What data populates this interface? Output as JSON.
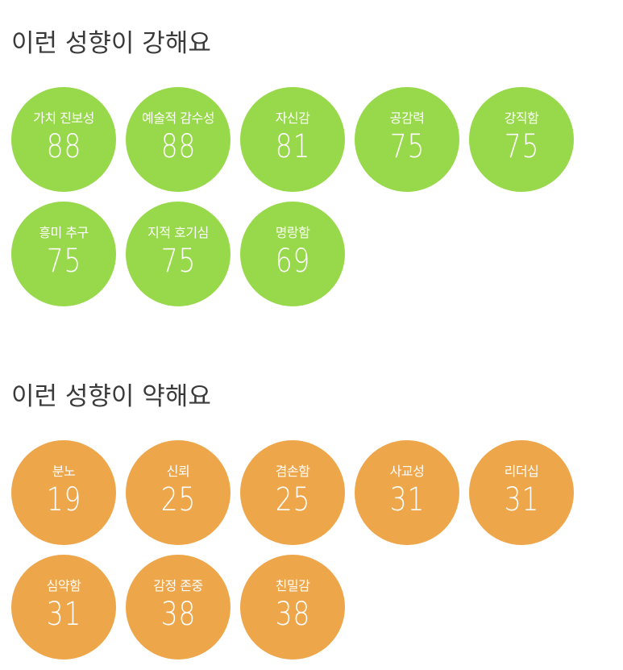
{
  "strong": {
    "title": "이런 성향이 강해요",
    "color": "#97d94a",
    "traits": [
      {
        "label": "가치 진보성",
        "score": "88"
      },
      {
        "label": "예술적 감수성",
        "score": "88"
      },
      {
        "label": "자신감",
        "score": "81"
      },
      {
        "label": "공감력",
        "score": "75"
      },
      {
        "label": "강직함",
        "score": "75"
      },
      {
        "label": "흥미 추구",
        "score": "75"
      },
      {
        "label": "지적 호기심",
        "score": "75"
      },
      {
        "label": "명랑함",
        "score": "69"
      }
    ]
  },
  "weak": {
    "title": "이런 성향이 약해요",
    "color": "#eea64b",
    "traits": [
      {
        "label": "분노",
        "score": "19"
      },
      {
        "label": "신뢰",
        "score": "25"
      },
      {
        "label": "겸손함",
        "score": "25"
      },
      {
        "label": "사교성",
        "score": "31"
      },
      {
        "label": "리더십",
        "score": "31"
      },
      {
        "label": "심약함",
        "score": "31"
      },
      {
        "label": "감정 존중",
        "score": "38"
      },
      {
        "label": "친밀감",
        "score": "38"
      }
    ]
  }
}
